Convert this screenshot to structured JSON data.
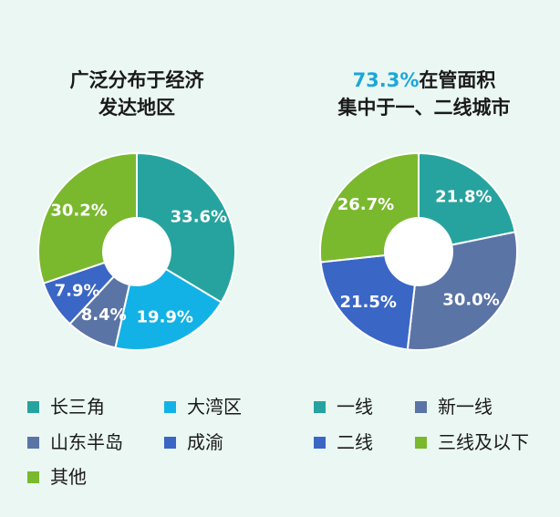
{
  "chart_data": [
    {
      "type": "pie",
      "title": "广泛分布于经济发达地区",
      "title_lines": [
        "广泛分布于经济",
        "发达地区"
      ],
      "categories": [
        "长三角",
        "大湾区",
        "山东半岛",
        "成渝",
        "其他"
      ],
      "values": [
        33.6,
        19.9,
        8.4,
        7.9,
        30.2
      ],
      "labels": [
        "33.6%",
        "19.9%",
        "8.4%",
        "7.9%",
        "30.2%"
      ],
      "colors": [
        "#27a39f",
        "#13b2e6",
        "#5b74a6",
        "#3a66c5",
        "#7ab82e"
      ],
      "donut": true,
      "legend_placement": "bottom"
    },
    {
      "type": "pie",
      "title": "73.3%在管面积集中于一、二线城市",
      "title_highlight": "73.3%",
      "title_line1_rest": "在管面积",
      "title_line2": "集中于一、二线城市",
      "categories": [
        "一线",
        "新一线",
        "二线",
        "三线及以下"
      ],
      "values": [
        21.8,
        30.0,
        21.5,
        26.7
      ],
      "labels": [
        "21.8%",
        "30.0%",
        "21.5%",
        "26.7%"
      ],
      "colors": [
        "#27a39f",
        "#5b74a6",
        "#3a66c5",
        "#7ab82e"
      ],
      "donut": true,
      "legend_placement": "bottom"
    }
  ]
}
